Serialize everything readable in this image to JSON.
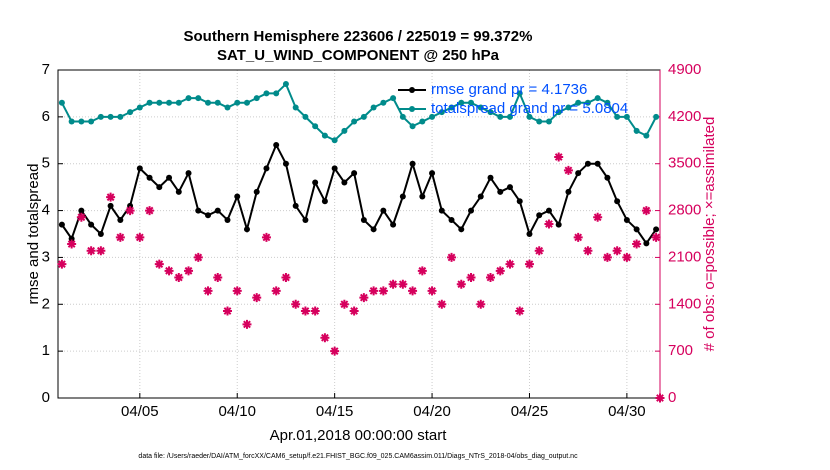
{
  "chart_data": {
    "type": "line",
    "title": "Southern Hemisphere 223606 / 225019 = 99.372%",
    "subtitle": "SAT_U_WIND_COMPONENT @ 250 hPa",
    "x_label": "Apr.01,2018 00:00:00 start",
    "y_label": "rmse and totalspread",
    "y2_label": "# of obs: o=possible; ×=assimilated",
    "footnote": "data file: /Users/raeder/DAI/ATM_forcXX/CAM6_setup/f.e21.FHIST_BGC.f09_025.CAM6assim.011/Diags_NTrS_2018-04/obs_diag_output.nc",
    "x": [
      0,
      0.5,
      1,
      1.5,
      2,
      2.5,
      3,
      3.5,
      4,
      4.5,
      5,
      5.5,
      6,
      6.5,
      7,
      7.5,
      8,
      8.5,
      9,
      9.5,
      10,
      10.5,
      11,
      11.5,
      12,
      12.5,
      13,
      13.5,
      14,
      14.5,
      15,
      15.5,
      16,
      16.5,
      17,
      17.5,
      18,
      18.5,
      19,
      19.5,
      20,
      20.5,
      21,
      21.5,
      22,
      22.5,
      23,
      23.5,
      24,
      24.5,
      25,
      25.5,
      26,
      26.5,
      27,
      27.5,
      28,
      28.5,
      29,
      29.5,
      30,
      30.5,
      30.7
    ],
    "xlim": [
      -0.2,
      30.7
    ],
    "xticks": [
      {
        "value": 4,
        "label": "04/05"
      },
      {
        "value": 9,
        "label": "04/10"
      },
      {
        "value": 14,
        "label": "04/15"
      },
      {
        "value": 19,
        "label": "04/20"
      },
      {
        "value": 24,
        "label": "04/25"
      },
      {
        "value": 29,
        "label": "04/30"
      }
    ],
    "ylim": [
      0,
      7
    ],
    "yticks": [
      0,
      1,
      2,
      3,
      4,
      5,
      6,
      7
    ],
    "y2lim": [
      0,
      4900
    ],
    "y2ticks": [
      0,
      700,
      1400,
      2100,
      2800,
      3500,
      4200,
      4900
    ],
    "grid": true,
    "legend": "upper right",
    "series": [
      {
        "name": "rmse grand pr = 4.1736",
        "color": "#000000",
        "values": [
          3.7,
          3.4,
          4.0,
          3.7,
          3.5,
          4.1,
          3.8,
          4.1,
          4.9,
          4.7,
          4.5,
          4.7,
          4.4,
          4.8,
          4.0,
          3.9,
          4.0,
          3.8,
          4.3,
          3.6,
          4.4,
          4.9,
          5.4,
          5.0,
          4.1,
          3.8,
          4.6,
          4.2,
          4.9,
          4.6,
          4.8,
          3.8,
          3.6,
          4.0,
          3.7,
          4.3,
          5.0,
          4.3,
          4.8,
          4.0,
          3.8,
          3.6,
          4.0,
          4.3,
          4.7,
          4.4,
          4.5,
          4.2,
          3.5,
          3.9,
          4.0,
          3.7,
          4.4,
          4.8,
          5.0,
          5.0,
          4.7,
          4.2,
          3.8,
          3.6,
          3.3,
          3.6,
          null
        ]
      },
      {
        "name": "totalspread grand pr = 5.0804",
        "color": "#008b8b",
        "values": [
          6.3,
          5.9,
          5.9,
          5.9,
          6.0,
          6.0,
          6.0,
          6.1,
          6.2,
          6.3,
          6.3,
          6.3,
          6.3,
          6.4,
          6.4,
          6.3,
          6.3,
          6.2,
          6.3,
          6.3,
          6.4,
          6.5,
          6.5,
          6.7,
          6.2,
          6.0,
          5.8,
          5.6,
          5.5,
          5.7,
          5.9,
          6.0,
          6.2,
          6.3,
          6.4,
          6.0,
          5.8,
          5.9,
          6.0,
          6.1,
          6.2,
          6.3,
          6.3,
          6.2,
          6.1,
          6.0,
          6.0,
          6.5,
          6.0,
          5.9,
          5.9,
          6.1,
          6.2,
          6.3,
          6.3,
          6.4,
          6.3,
          6.0,
          6.0,
          5.7,
          5.6,
          6.0,
          null
        ]
      },
      {
        "color": "#d6005d",
        "axis": "y2",
        "marker": "star",
        "values": [
          2000,
          2300,
          2700,
          2200,
          2200,
          3000,
          2400,
          2800,
          2400,
          2800,
          2000,
          1900,
          1800,
          1900,
          2100,
          1600,
          1800,
          1300,
          1600,
          1100,
          1500,
          2400,
          1600,
          1800,
          1400,
          1300,
          1300,
          900,
          700,
          1400,
          1300,
          1500,
          1600,
          1600,
          1700,
          1700,
          1600,
          1900,
          1600,
          1400,
          2100,
          1700,
          1800,
          1400,
          1800,
          1900,
          2000,
          1300,
          2000,
          2200,
          2600,
          3600,
          3400,
          2400,
          2200,
          2700,
          2100,
          2200,
          2100,
          2300,
          2800,
          2400,
          0
        ]
      }
    ]
  }
}
